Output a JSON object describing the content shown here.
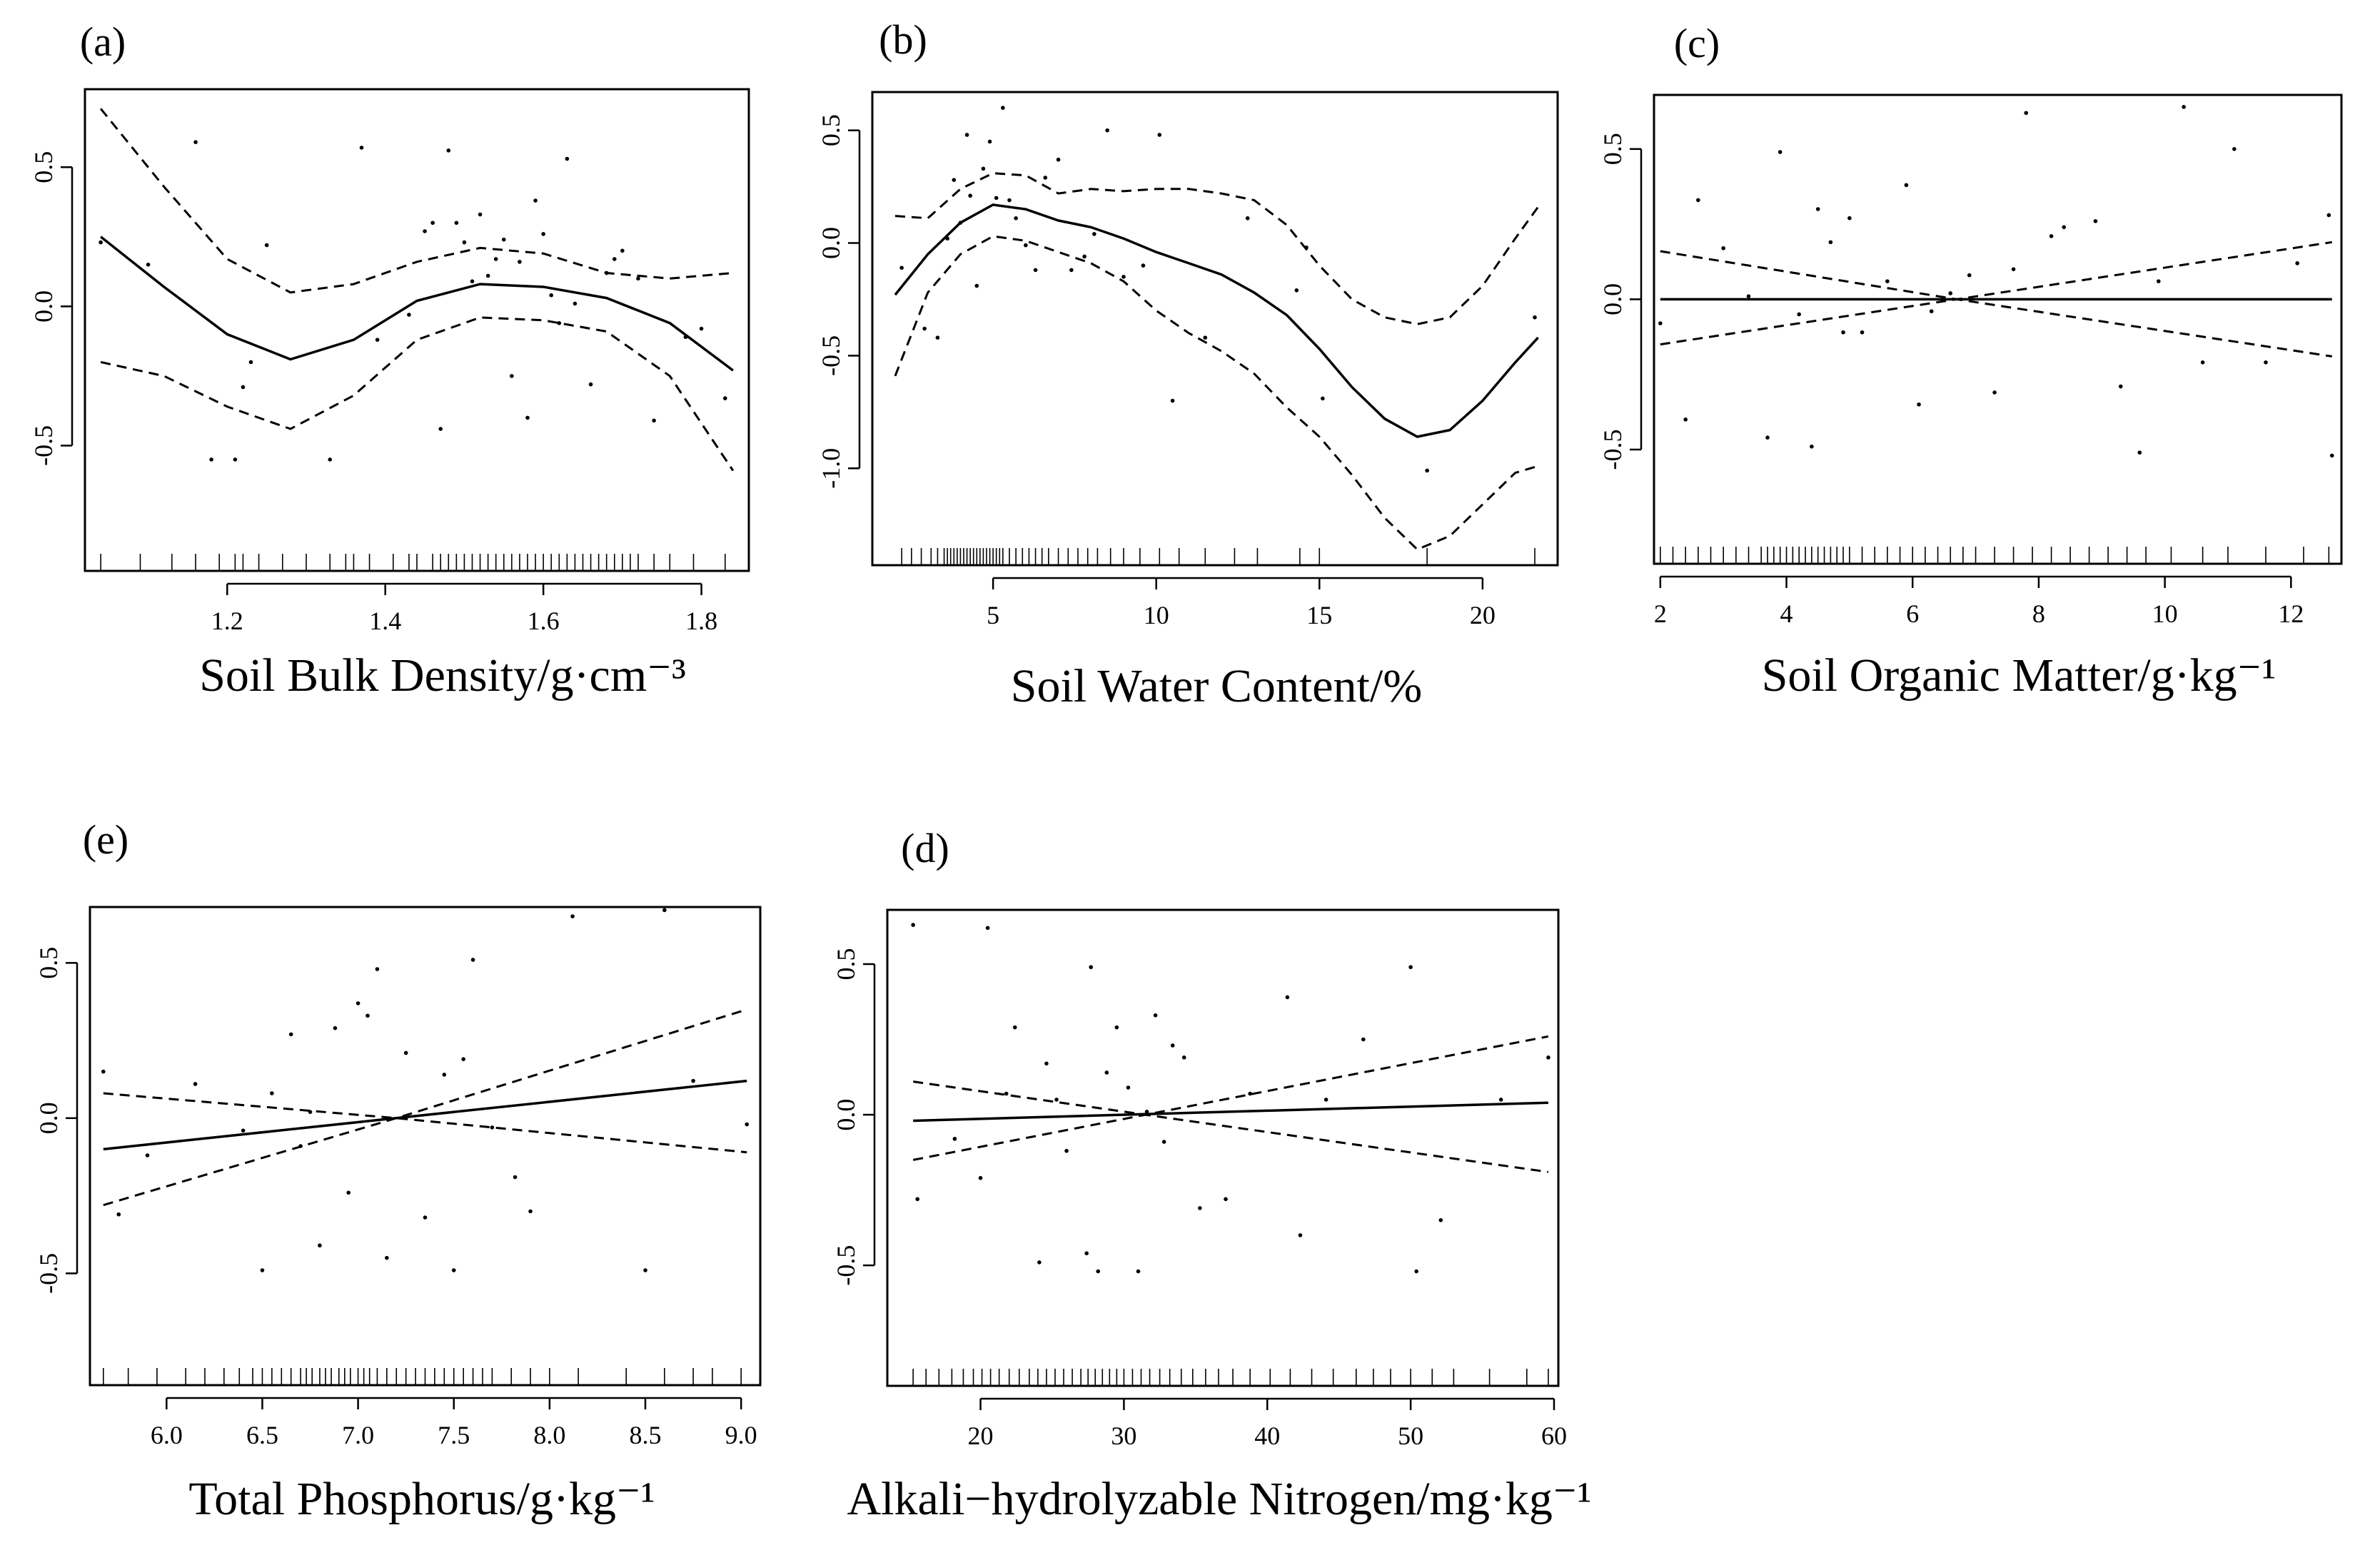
{
  "chart_data": [
    {
      "type": "scatter",
      "panel_label": "(a)",
      "title": "(a)",
      "xlabel": "Soil Bulk Density/g·cm⁻³",
      "ylabel": "",
      "xlim": [
        1.02,
        1.86
      ],
      "ylim": [
        -0.95,
        0.78
      ],
      "xticks": [
        1.2,
        1.4,
        1.6,
        1.8
      ],
      "xtick_labels": [
        "1.2",
        "1.4",
        "1.6",
        "1.8"
      ],
      "yticks": [
        -0.5,
        0.0,
        0.5
      ],
      "ytick_labels": [
        "-0.5",
        "0.0",
        "0.5"
      ],
      "series": [
        {
          "name": "fit",
          "style": "solid",
          "x": [
            1.04,
            1.12,
            1.2,
            1.28,
            1.36,
            1.44,
            1.52,
            1.6,
            1.68,
            1.76,
            1.84
          ],
          "y": [
            0.25,
            0.07,
            -0.1,
            -0.19,
            -0.12,
            0.02,
            0.08,
            0.07,
            0.03,
            -0.06,
            -0.23
          ]
        },
        {
          "name": "upper",
          "style": "dashed",
          "x": [
            1.04,
            1.12,
            1.2,
            1.28,
            1.36,
            1.44,
            1.52,
            1.6,
            1.68,
            1.76,
            1.84
          ],
          "y": [
            0.71,
            0.43,
            0.17,
            0.05,
            0.08,
            0.16,
            0.21,
            0.19,
            0.12,
            0.1,
            0.12
          ]
        },
        {
          "name": "lower",
          "style": "dashed",
          "x": [
            1.04,
            1.12,
            1.2,
            1.28,
            1.36,
            1.44,
            1.52,
            1.6,
            1.68,
            1.76,
            1.84
          ],
          "y": [
            -0.2,
            -0.25,
            -0.36,
            -0.44,
            -0.32,
            -0.12,
            -0.04,
            -0.05,
            -0.09,
            -0.25,
            -0.59
          ]
        },
        {
          "name": "residuals",
          "style": "points",
          "x": [
            1.04,
            1.1,
            1.16,
            1.18,
            1.21,
            1.22,
            1.23,
            1.25,
            1.33,
            1.37,
            1.39,
            1.43,
            1.45,
            1.46,
            1.47,
            1.48,
            1.49,
            1.5,
            1.51,
            1.52,
            1.53,
            1.54,
            1.55,
            1.56,
            1.57,
            1.58,
            1.59,
            1.6,
            1.61,
            1.62,
            1.63,
            1.64,
            1.66,
            1.68,
            1.69,
            1.7,
            1.72,
            1.74,
            1.78,
            1.8,
            1.83
          ],
          "y": [
            0.23,
            0.15,
            0.59,
            -0.55,
            -0.55,
            -0.29,
            -0.2,
            0.22,
            -0.55,
            0.57,
            -0.12,
            -0.03,
            0.27,
            0.3,
            -0.44,
            0.56,
            0.3,
            0.23,
            0.09,
            0.33,
            0.11,
            0.17,
            0.24,
            -0.25,
            0.16,
            -0.4,
            0.38,
            0.26,
            0.04,
            -0.06,
            0.53,
            0.01,
            -0.28,
            0.12,
            0.17,
            0.2,
            0.1,
            -0.41,
            -0.11,
            -0.08,
            -0.33
          ]
        }
      ],
      "rug": [
        1.04,
        1.09,
        1.13,
        1.16,
        1.19,
        1.21,
        1.22,
        1.24,
        1.27,
        1.3,
        1.33,
        1.35,
        1.36,
        1.38,
        1.41,
        1.43,
        1.44,
        1.46,
        1.47,
        1.48,
        1.49,
        1.5,
        1.51,
        1.52,
        1.53,
        1.54,
        1.55,
        1.56,
        1.57,
        1.58,
        1.59,
        1.6,
        1.61,
        1.62,
        1.63,
        1.64,
        1.65,
        1.66,
        1.67,
        1.68,
        1.69,
        1.7,
        1.71,
        1.72,
        1.74,
        1.76,
        1.79,
        1.83
      ]
    },
    {
      "type": "scatter",
      "panel_label": "(b)",
      "title": "(b)",
      "xlabel": "Soil Water Content/%",
      "ylabel": "",
      "xlim": [
        1.3,
        22.3
      ],
      "ylim": [
        -1.43,
        0.67
      ],
      "xticks": [
        5,
        10,
        15,
        20
      ],
      "xtick_labels": [
        "5",
        "10",
        "15",
        "20"
      ],
      "yticks": [
        -1.0,
        -0.5,
        0.0,
        0.5
      ],
      "ytick_labels": [
        "-1.0",
        "-0.5",
        "0.0",
        "0.5"
      ],
      "series": [
        {
          "name": "fit",
          "style": "solid",
          "x": [
            2,
            3,
            4,
            5,
            6,
            7,
            8,
            9,
            10,
            11,
            12,
            13,
            14,
            15,
            16,
            17,
            18,
            19,
            20,
            21,
            21.7
          ],
          "y": [
            -0.23,
            -0.05,
            0.09,
            0.17,
            0.15,
            0.1,
            0.07,
            0.02,
            -0.04,
            -0.09,
            -0.14,
            -0.22,
            -0.32,
            -0.47,
            -0.64,
            -0.78,
            -0.86,
            -0.83,
            -0.7,
            -0.53,
            -0.42
          ]
        },
        {
          "name": "upper",
          "style": "dashed",
          "x": [
            2,
            3,
            4,
            5,
            6,
            7,
            8,
            9,
            10,
            11,
            12,
            13,
            14,
            15,
            16,
            17,
            18,
            19,
            20,
            21,
            21.7
          ],
          "y": [
            0.12,
            0.11,
            0.24,
            0.31,
            0.3,
            0.22,
            0.24,
            0.23,
            0.24,
            0.24,
            0.22,
            0.19,
            0.08,
            -0.1,
            -0.25,
            -0.33,
            -0.36,
            -0.33,
            -0.19,
            0.02,
            0.16
          ]
        },
        {
          "name": "lower",
          "style": "dashed",
          "x": [
            2,
            3,
            4,
            5,
            6,
            7,
            8,
            9,
            10,
            11,
            12,
            13,
            14,
            15,
            16,
            17,
            18,
            19,
            20,
            21,
            21.7
          ],
          "y": [
            -0.59,
            -0.22,
            -0.05,
            0.03,
            0.01,
            -0.04,
            -0.09,
            -0.17,
            -0.3,
            -0.4,
            -0.48,
            -0.58,
            -0.73,
            -0.86,
            -1.03,
            -1.22,
            -1.36,
            -1.3,
            -1.16,
            -1.02,
            -0.99
          ]
        },
        {
          "name": "residuals",
          "style": "points",
          "x": [
            2.2,
            2.9,
            3.3,
            3.6,
            3.8,
            4.0,
            4.2,
            4.3,
            4.5,
            4.7,
            4.9,
            5.1,
            5.3,
            5.5,
            5.7,
            6.0,
            6.3,
            6.6,
            7.0,
            7.4,
            7.8,
            8.1,
            8.5,
            9.0,
            9.6,
            10.1,
            10.5,
            11.5,
            12.8,
            14.3,
            14.6,
            15.1,
            18.3,
            21.6
          ],
          "y": [
            -0.11,
            -0.38,
            -0.42,
            0.02,
            0.28,
            0.09,
            0.48,
            0.21,
            -0.19,
            0.33,
            0.45,
            0.2,
            0.6,
            0.19,
            0.11,
            -0.01,
            -0.12,
            0.29,
            0.37,
            -0.12,
            -0.06,
            0.04,
            0.5,
            -0.15,
            -0.1,
            0.48,
            -0.7,
            -0.42,
            0.11,
            -0.21,
            -0.02,
            -0.69,
            -1.01,
            -0.33
          ]
        }
      ],
      "rug": [
        2.2,
        2.5,
        2.8,
        3.1,
        3.3,
        3.5,
        3.6,
        3.7,
        3.8,
        3.9,
        4.0,
        4.1,
        4.2,
        4.3,
        4.4,
        4.5,
        4.6,
        4.7,
        4.8,
        4.9,
        5.0,
        5.1,
        5.2,
        5.3,
        5.5,
        5.7,
        5.9,
        6.1,
        6.3,
        6.5,
        6.7,
        7.0,
        7.3,
        7.6,
        7.9,
        8.2,
        8.6,
        9.0,
        9.5,
        10.1,
        10.7,
        11.5,
        12.4,
        13.1,
        14.4,
        15.0,
        18.3,
        21.6
      ]
    },
    {
      "type": "scatter",
      "panel_label": "(c)",
      "title": "(c)",
      "xlabel": "Soil Organic Matter/g·kg⁻¹",
      "ylabel": "",
      "xlim": [
        1.9,
        12.8
      ],
      "ylim": [
        -0.88,
        0.68
      ],
      "xticks": [
        2,
        4,
        6,
        8,
        10,
        12
      ],
      "xtick_labels": [
        "2",
        "4",
        "6",
        "8",
        "10",
        "12"
      ],
      "yticks": [
        -0.5,
        0.0,
        0.5
      ],
      "ytick_labels": [
        "-0.5",
        "0.0",
        "0.5"
      ],
      "series": [
        {
          "name": "fit",
          "style": "solid",
          "x": [
            2.0,
            12.65
          ],
          "y": [
            0.0,
            0.0
          ]
        },
        {
          "name": "upper",
          "style": "dashed",
          "x": [
            2.0,
            6.7,
            12.65
          ],
          "y": [
            0.16,
            0.0,
            0.19
          ]
        },
        {
          "name": "lower",
          "style": "dashed",
          "x": [
            2.0,
            6.7,
            12.65
          ],
          "y": [
            -0.15,
            0.0,
            -0.19
          ]
        },
        {
          "name": "residuals",
          "style": "points",
          "x": [
            2.0,
            2.4,
            2.6,
            3.0,
            3.4,
            3.7,
            3.9,
            4.2,
            4.4,
            4.5,
            4.7,
            4.9,
            5.0,
            5.2,
            5.6,
            5.9,
            6.1,
            6.3,
            6.6,
            6.9,
            7.3,
            7.6,
            7.8,
            8.2,
            8.4,
            8.9,
            9.3,
            9.6,
            9.9,
            10.3,
            10.6,
            11.1,
            11.6,
            12.1,
            12.6,
            12.65
          ],
          "y": [
            -0.08,
            -0.4,
            0.33,
            0.17,
            0.01,
            -0.46,
            0.49,
            -0.05,
            -0.49,
            0.3,
            0.19,
            -0.11,
            0.27,
            -0.11,
            0.06,
            0.38,
            -0.35,
            -0.04,
            0.02,
            0.08,
            -0.31,
            0.1,
            0.62,
            0.21,
            0.24,
            0.26,
            -0.29,
            -0.51,
            0.06,
            0.64,
            -0.21,
            0.5,
            -0.21,
            0.12,
            0.28,
            -0.52
          ]
        }
      ],
      "rug": [
        2.0,
        2.2,
        2.4,
        2.6,
        2.8,
        3.0,
        3.2,
        3.4,
        3.6,
        3.7,
        3.8,
        3.9,
        4.0,
        4.1,
        4.2,
        4.3,
        4.4,
        4.5,
        4.6,
        4.7,
        4.8,
        4.9,
        5.0,
        5.2,
        5.4,
        5.6,
        5.8,
        6.0,
        6.2,
        6.4,
        6.6,
        6.8,
        7.0,
        7.3,
        7.6,
        7.9,
        8.2,
        8.5,
        8.8,
        9.1,
        9.4,
        9.7,
        10.1,
        10.6,
        11.0,
        11.6,
        12.2,
        12.6
      ]
    },
    {
      "type": "scatter",
      "panel_label": "(e)",
      "title": "(e)",
      "xlabel": "Total Phosphorus/g·kg⁻¹",
      "ylabel": "",
      "xlim": [
        5.6,
        9.1
      ],
      "ylim": [
        -0.86,
        0.68
      ],
      "xticks": [
        6.0,
        6.5,
        7.0,
        7.5,
        8.0,
        8.5,
        9.0
      ],
      "xtick_labels": [
        "6.0",
        "6.5",
        "7.0",
        "7.5",
        "8.0",
        "8.5",
        "9.0"
      ],
      "yticks": [
        -0.5,
        0.0,
        0.5
      ],
      "ytick_labels": [
        "-0.5",
        "0.0",
        "0.5"
      ],
      "series": [
        {
          "name": "fit",
          "style": "solid",
          "x": [
            5.67,
            9.03
          ],
          "y": [
            -0.1,
            0.12
          ]
        },
        {
          "name": "upper",
          "style": "dashed",
          "x": [
            5.67,
            7.2,
            9.03
          ],
          "y": [
            -0.28,
            0.0,
            0.35
          ]
        },
        {
          "name": "lower",
          "style": "dashed",
          "x": [
            5.67,
            7.2,
            9.03
          ],
          "y": [
            0.08,
            0.0,
            -0.11
          ]
        },
        {
          "name": "residuals",
          "style": "points",
          "x": [
            5.67,
            5.75,
            5.9,
            6.15,
            6.4,
            6.5,
            6.55,
            6.65,
            6.7,
            6.75,
            6.8,
            6.88,
            6.95,
            7.0,
            7.05,
            7.1,
            7.15,
            7.25,
            7.35,
            7.45,
            7.5,
            7.55,
            7.6,
            7.7,
            7.82,
            7.9,
            8.12,
            8.5,
            8.6,
            8.75,
            9.03
          ],
          "y": [
            0.15,
            -0.31,
            -0.12,
            0.11,
            -0.04,
            -0.49,
            0.08,
            0.27,
            -0.09,
            0.02,
            -0.41,
            0.29,
            -0.24,
            0.37,
            0.33,
            0.48,
            -0.45,
            0.21,
            -0.32,
            0.14,
            -0.49,
            0.19,
            0.51,
            -0.03,
            -0.19,
            -0.3,
            0.65,
            -0.49,
            0.67,
            0.12,
            -0.02
          ]
        }
      ],
      "rug": [
        5.67,
        5.8,
        5.95,
        6.1,
        6.2,
        6.3,
        6.38,
        6.45,
        6.5,
        6.55,
        6.6,
        6.65,
        6.7,
        6.73,
        6.76,
        6.8,
        6.83,
        6.86,
        6.9,
        6.93,
        6.96,
        7.0,
        7.03,
        7.06,
        7.1,
        7.15,
        7.2,
        7.25,
        7.3,
        7.35,
        7.4,
        7.45,
        7.5,
        7.55,
        7.6,
        7.65,
        7.7,
        7.8,
        7.9,
        8.0,
        8.15,
        8.4,
        8.6,
        8.75,
        8.85,
        9.0
      ]
    },
    {
      "type": "scatter",
      "panel_label": "(d)",
      "title": "(d)",
      "xlabel": "Alkali−hydrolyzable Nitrogen/mg·kg⁻¹",
      "ylabel": "",
      "xlim": [
        13.5,
        60.3
      ],
      "ylim": [
        -0.9,
        0.68
      ],
      "xticks": [
        20,
        30,
        40,
        50,
        60
      ],
      "xtick_labels": [
        "20",
        "30",
        "40",
        "50",
        "60"
      ],
      "yticks": [
        -0.5,
        0.0,
        0.5
      ],
      "ytick_labels": [
        "-0.5",
        "0.0",
        "0.5"
      ],
      "series": [
        {
          "name": "fit",
          "style": "solid",
          "x": [
            15.3,
            59.6
          ],
          "y": [
            -0.02,
            0.04
          ]
        },
        {
          "name": "upper",
          "style": "dashed",
          "x": [
            15.3,
            31.5,
            59.6
          ],
          "y": [
            -0.15,
            0.0,
            0.26
          ]
        },
        {
          "name": "lower",
          "style": "dashed",
          "x": [
            15.3,
            31.5,
            59.6
          ],
          "y": [
            0.11,
            0.0,
            -0.19
          ]
        },
        {
          "name": "residuals",
          "style": "points",
          "x": [
            15.3,
            15.6,
            18.2,
            20.0,
            20.5,
            21.8,
            22.4,
            24.1,
            24.6,
            25.3,
            26.0,
            27.4,
            27.7,
            28.2,
            28.8,
            29.5,
            30.3,
            31.0,
            31.6,
            32.2,
            32.8,
            33.4,
            34.2,
            35.3,
            37.1,
            38.8,
            41.4,
            42.3,
            44.1,
            46.7,
            50.0,
            50.4,
            52.1,
            56.3,
            59.6
          ],
          "y": [
            0.63,
            -0.28,
            -0.08,
            -0.21,
            0.62,
            0.07,
            0.29,
            -0.49,
            0.17,
            0.05,
            -0.12,
            -0.46,
            0.49,
            -0.52,
            0.14,
            0.29,
            0.09,
            -0.52,
            0.01,
            0.33,
            -0.09,
            0.23,
            0.19,
            -0.31,
            -0.28,
            0.07,
            0.39,
            -0.4,
            0.05,
            0.25,
            0.49,
            -0.52,
            -0.35,
            0.05,
            0.19
          ]
        }
      ],
      "rug": [
        15.3,
        16.2,
        17.1,
        18.0,
        18.8,
        19.5,
        20.1,
        20.7,
        21.3,
        22.0,
        22.7,
        23.4,
        24.0,
        24.6,
        25.2,
        25.8,
        26.4,
        27.0,
        27.5,
        28.0,
        28.5,
        29.0,
        29.5,
        30.0,
        30.6,
        31.2,
        31.8,
        32.5,
        33.2,
        34.0,
        34.8,
        35.7,
        36.6,
        37.6,
        38.8,
        40.2,
        41.6,
        43.1,
        44.6,
        46.2,
        47.4,
        48.6,
        50.0,
        51.5,
        53.0,
        55.5,
        58.1,
        59.6
      ]
    }
  ]
}
